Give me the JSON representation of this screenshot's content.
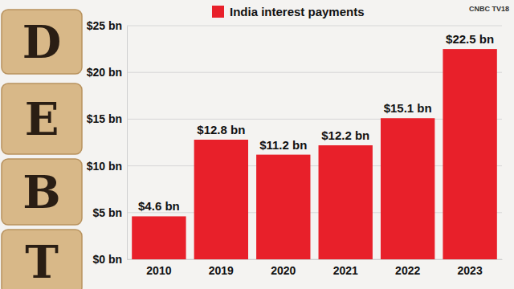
{
  "chart_data": {
    "type": "bar",
    "categories": [
      "2010",
      "2019",
      "2020",
      "2021",
      "2022",
      "2023"
    ],
    "series": [
      {
        "name": "India interest payments",
        "color": "#e8202a",
        "values": [
          4.6,
          12.8,
          11.2,
          12.2,
          15.1,
          22.5
        ],
        "value_labels": [
          "$4.6 bn",
          "$12.8 bn",
          "$11.2 bn",
          "$12.2 bn",
          "$15.1 bn",
          "$22.5 bn"
        ]
      }
    ],
    "ylim": [
      0,
      25
    ],
    "yticks": [
      {
        "value": 0,
        "label": "$0 bn"
      },
      {
        "value": 5,
        "label": "$5 bn"
      },
      {
        "value": 10,
        "label": "$10 bn"
      },
      {
        "value": 15,
        "label": "$15 bn"
      },
      {
        "value": 20,
        "label": "$20 bn"
      },
      {
        "value": 25,
        "label": "$25 bn"
      }
    ],
    "grid": true,
    "legend": "top",
    "data_labels": true,
    "annotations": [
      "D",
      "E",
      "B",
      "T",
      "CNBC TV18"
    ]
  }
}
